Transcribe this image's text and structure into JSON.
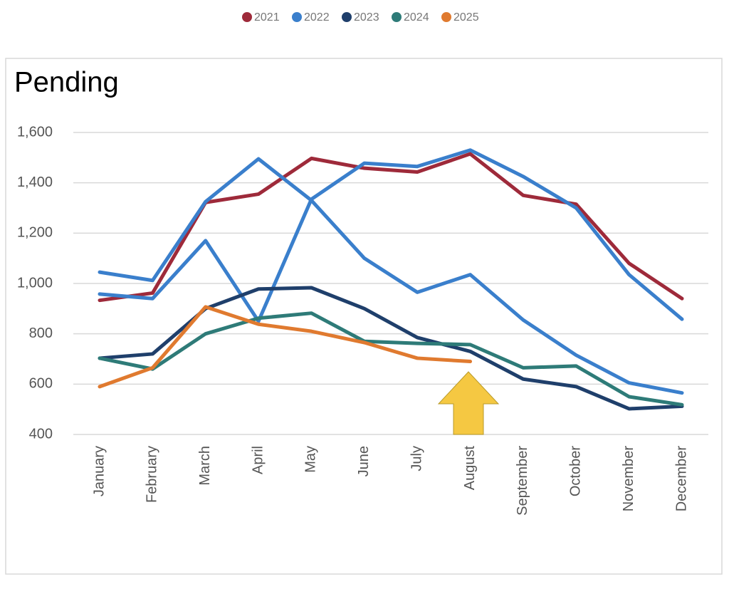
{
  "chart_data": {
    "type": "line",
    "title": "Pending",
    "categories": [
      "January",
      "February",
      "March",
      "April",
      "May",
      "June",
      "July",
      "August",
      "September",
      "October",
      "November",
      "December"
    ],
    "series": [
      {
        "name": "2021",
        "color": "#9e2a3a",
        "values": [
          933,
          962,
          1322,
          1355,
          1497,
          1458,
          1443,
          1515,
          1350,
          1315,
          1080,
          940
        ]
      },
      {
        "name": "2022",
        "color": "#3a7fcc",
        "values": [
          958,
          940,
          1170,
          850,
          1335,
          1478,
          1465,
          1530,
          1425,
          1300,
          1035,
          858
        ]
      },
      {
        "name": "2023",
        "color": "#1f3f6b",
        "values": [
          703,
          720,
          900,
          978,
          983,
          900,
          785,
          730,
          620,
          590,
          502,
          512
        ]
      },
      {
        "name": "2024",
        "color": "#2e7b78",
        "values": [
          703,
          660,
          800,
          862,
          882,
          770,
          762,
          757,
          665,
          672,
          550,
          518
        ]
      },
      {
        "name": "2025",
        "color": "#e07a2f",
        "values": [
          590,
          665,
          907,
          838,
          810,
          765,
          703,
          690,
          null,
          null,
          null,
          null
        ]
      },
      {
        "color": "#3a7fcc",
        "values": [
          1045,
          1012,
          1325,
          1495,
          1330,
          1100,
          965,
          1035,
          855,
          715,
          605,
          565
        ]
      }
    ],
    "ylim": [
      400,
      1600
    ],
    "yticks": [
      400,
      600,
      800,
      {
        "value": 1000,
        "label": "1,000"
      },
      {
        "value": 1200,
        "label": "1,200"
      },
      {
        "value": 1400,
        "label": "1,400"
      },
      {
        "value": 1600,
        "label": "1,600"
      }
    ],
    "grid": true
  }
}
